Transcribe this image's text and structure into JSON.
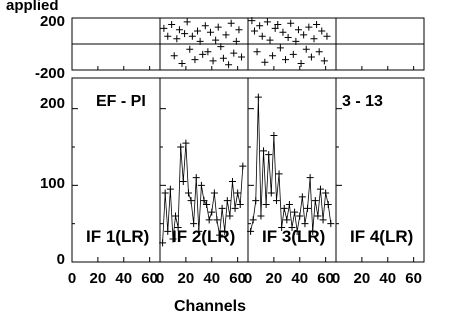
{
  "chart_data": {
    "type": "scatter",
    "title_fragment": "applied",
    "xlabel": "Channels",
    "x_tick_labels": [
      "0",
      "20",
      "40",
      "60"
    ],
    "phase_panel": {
      "y_tick_labels": [
        "200",
        "-200"
      ],
      "ylim": [
        -200,
        200
      ],
      "grid": true
    },
    "amp_panel": {
      "y_tick_labels": [
        "200",
        "100",
        "0"
      ],
      "ylim": [
        0,
        240
      ],
      "baseline_label": "EF - PI",
      "scan_label": "3 - 13"
    },
    "panels": [
      {
        "label": "IF 1(LR)",
        "phase": [],
        "amp": []
      },
      {
        "label": "IF 2(LR)",
        "phase": [
          [
            3,
            120
          ],
          [
            6,
            60
          ],
          [
            9,
            150
          ],
          [
            11,
            -90
          ],
          [
            13,
            40
          ],
          [
            15,
            110
          ],
          [
            17,
            -150
          ],
          [
            19,
            80
          ],
          [
            21,
            170
          ],
          [
            23,
            -40
          ],
          [
            25,
            60
          ],
          [
            27,
            -120
          ],
          [
            29,
            100
          ],
          [
            31,
            20
          ],
          [
            33,
            -80
          ],
          [
            35,
            140
          ],
          [
            37,
            -60
          ],
          [
            39,
            90
          ],
          [
            41,
            -130
          ],
          [
            43,
            30
          ],
          [
            45,
            130
          ],
          [
            47,
            -20
          ],
          [
            49,
            -110
          ],
          [
            51,
            70
          ],
          [
            53,
            -160
          ],
          [
            55,
            160
          ],
          [
            57,
            -70
          ],
          [
            59,
            20
          ],
          [
            61,
            110
          ],
          [
            63,
            -100
          ]
        ],
        "amp": [
          [
            2,
            25
          ],
          [
            4,
            90
          ],
          [
            6,
            40
          ],
          [
            8,
            95
          ],
          [
            10,
            30
          ],
          [
            12,
            60
          ],
          [
            14,
            45
          ],
          [
            16,
            150
          ],
          [
            18,
            105
          ],
          [
            20,
            155
          ],
          [
            22,
            90
          ],
          [
            24,
            80
          ],
          [
            26,
            50
          ],
          [
            28,
            110
          ],
          [
            30,
            40
          ],
          [
            32,
            100
          ],
          [
            34,
            80
          ],
          [
            36,
            75
          ],
          [
            38,
            55
          ],
          [
            40,
            65
          ],
          [
            42,
            90
          ],
          [
            44,
            55
          ],
          [
            46,
            35
          ],
          [
            48,
            70
          ],
          [
            50,
            40
          ],
          [
            52,
            80
          ],
          [
            54,
            60
          ],
          [
            56,
            105
          ],
          [
            58,
            70
          ],
          [
            60,
            90
          ],
          [
            62,
            75
          ],
          [
            64,
            125
          ]
        ]
      },
      {
        "label": "IF 3(LR)",
        "phase": [
          [
            3,
            180
          ],
          [
            5,
            100
          ],
          [
            7,
            -60
          ],
          [
            9,
            140
          ],
          [
            11,
            60
          ],
          [
            13,
            -140
          ],
          [
            15,
            170
          ],
          [
            17,
            30
          ],
          [
            19,
            -90
          ],
          [
            21,
            120
          ],
          [
            23,
            150
          ],
          [
            25,
            -30
          ],
          [
            27,
            90
          ],
          [
            29,
            -120
          ],
          [
            31,
            50
          ],
          [
            33,
            160
          ],
          [
            35,
            -80
          ],
          [
            37,
            20
          ],
          [
            39,
            110
          ],
          [
            41,
            -150
          ],
          [
            43,
            70
          ],
          [
            45,
            -40
          ],
          [
            47,
            130
          ],
          [
            49,
            -100
          ],
          [
            51,
            40
          ],
          [
            53,
            150
          ],
          [
            55,
            -60
          ],
          [
            57,
            100
          ],
          [
            59,
            -130
          ],
          [
            61,
            60
          ]
        ],
        "amp": [
          [
            2,
            40
          ],
          [
            4,
            55
          ],
          [
            6,
            80
          ],
          [
            8,
            215
          ],
          [
            10,
            60
          ],
          [
            12,
            145
          ],
          [
            14,
            75
          ],
          [
            16,
            140
          ],
          [
            18,
            90
          ],
          [
            20,
            165
          ],
          [
            22,
            80
          ],
          [
            24,
            115
          ],
          [
            26,
            45
          ],
          [
            28,
            70
          ],
          [
            30,
            55
          ],
          [
            32,
            75
          ],
          [
            34,
            45
          ],
          [
            36,
            65
          ],
          [
            38,
            40
          ],
          [
            40,
            60
          ],
          [
            42,
            85
          ],
          [
            44,
            50
          ],
          [
            46,
            70
          ],
          [
            48,
            110
          ],
          [
            50,
            40
          ],
          [
            52,
            80
          ],
          [
            54,
            60
          ],
          [
            56,
            95
          ],
          [
            58,
            55
          ],
          [
            60,
            90
          ],
          [
            62,
            75
          ],
          [
            64,
            50
          ]
        ]
      },
      {
        "label": "IF 4(LR)",
        "phase": [],
        "amp": []
      }
    ]
  }
}
